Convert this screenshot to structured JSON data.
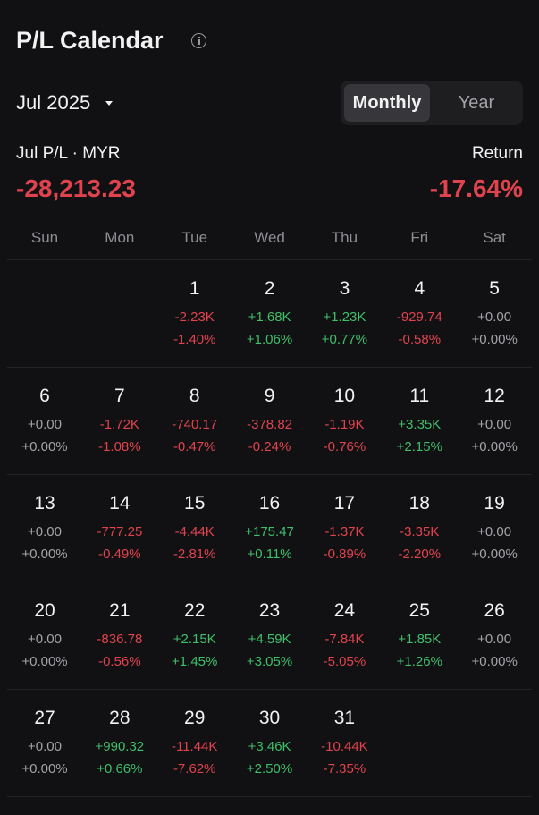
{
  "header": {
    "title": "P/L Calendar"
  },
  "month": "Jul 2025",
  "tabs": [
    "Monthly",
    "Year"
  ],
  "summary": {
    "label": "Jul P/L",
    "currency": "MYR",
    "value": "-28,213.23",
    "return_label": "Return",
    "return_value": "-17.64%"
  },
  "weekdays": [
    "Sun",
    "Mon",
    "Tue",
    "Wed",
    "Thu",
    "Fri",
    "Sat"
  ],
  "weeks": [
    [
      null,
      null,
      {
        "day": "1",
        "pl": "-2.23K",
        "pct": "-1.40%"
      },
      {
        "day": "2",
        "pl": "+1.68K",
        "pct": "+1.06%"
      },
      {
        "day": "3",
        "pl": "+1.23K",
        "pct": "+0.77%"
      },
      {
        "day": "4",
        "pl": "-929.74",
        "pct": "-0.58%"
      },
      {
        "day": "5",
        "pl": "+0.00",
        "pct": "+0.00%"
      }
    ],
    [
      {
        "day": "6",
        "pl": "+0.00",
        "pct": "+0.00%"
      },
      {
        "day": "7",
        "pl": "-1.72K",
        "pct": "-1.08%"
      },
      {
        "day": "8",
        "pl": "-740.17",
        "pct": "-0.47%"
      },
      {
        "day": "9",
        "pl": "-378.82",
        "pct": "-0.24%"
      },
      {
        "day": "10",
        "pl": "-1.19K",
        "pct": "-0.76%"
      },
      {
        "day": "11",
        "pl": "+3.35K",
        "pct": "+2.15%"
      },
      {
        "day": "12",
        "pl": "+0.00",
        "pct": "+0.00%"
      }
    ],
    [
      {
        "day": "13",
        "pl": "+0.00",
        "pct": "+0.00%"
      },
      {
        "day": "14",
        "pl": "-777.25",
        "pct": "-0.49%"
      },
      {
        "day": "15",
        "pl": "-4.44K",
        "pct": "-2.81%"
      },
      {
        "day": "16",
        "pl": "+175.47",
        "pct": "+0.11%"
      },
      {
        "day": "17",
        "pl": "-1.37K",
        "pct": "-0.89%"
      },
      {
        "day": "18",
        "pl": "-3.35K",
        "pct": "-2.20%"
      },
      {
        "day": "19",
        "pl": "+0.00",
        "pct": "+0.00%"
      }
    ],
    [
      {
        "day": "20",
        "pl": "+0.00",
        "pct": "+0.00%"
      },
      {
        "day": "21",
        "pl": "-836.78",
        "pct": "-0.56%"
      },
      {
        "day": "22",
        "pl": "+2.15K",
        "pct": "+1.45%"
      },
      {
        "day": "23",
        "pl": "+4.59K",
        "pct": "+3.05%"
      },
      {
        "day": "24",
        "pl": "-7.84K",
        "pct": "-5.05%"
      },
      {
        "day": "25",
        "pl": "+1.85K",
        "pct": "+1.26%"
      },
      {
        "day": "26",
        "pl": "+0.00",
        "pct": "+0.00%"
      }
    ],
    [
      {
        "day": "27",
        "pl": "+0.00",
        "pct": "+0.00%"
      },
      {
        "day": "28",
        "pl": "+990.32",
        "pct": "+0.66%"
      },
      {
        "day": "29",
        "pl": "-11.44K",
        "pct": "-7.62%"
      },
      {
        "day": "30",
        "pl": "+3.46K",
        "pct": "+2.50%"
      },
      {
        "day": "31",
        "pl": "-10.44K",
        "pct": "-7.35%"
      },
      null,
      null
    ]
  ]
}
